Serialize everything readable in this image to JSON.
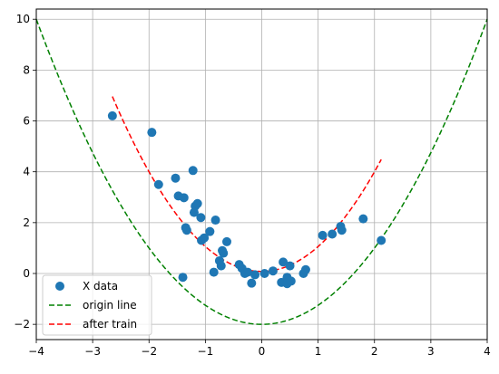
{
  "chart_data": {
    "type": "scatter",
    "xlim": [
      -4,
      4
    ],
    "ylim": [
      -2.6,
      10.4
    ],
    "xticks": [
      -4,
      -3,
      -2,
      -1,
      0,
      1,
      2,
      3,
      4
    ],
    "yticks": [
      -2,
      0,
      2,
      4,
      6,
      8,
      10
    ],
    "grid": true,
    "legend": {
      "placement": "lower-left",
      "entries": [
        "X data",
        "origin line",
        "after train"
      ]
    },
    "series": [
      {
        "name": "X data",
        "kind": "scatter",
        "color": "#1f77b4",
        "points": [
          [
            -2.65,
            6.2
          ],
          [
            -1.95,
            5.55
          ],
          [
            -1.83,
            3.5
          ],
          [
            -1.53,
            3.75
          ],
          [
            -1.48,
            3.05
          ],
          [
            -1.38,
            2.98
          ],
          [
            -1.22,
            4.05
          ],
          [
            -1.18,
            2.65
          ],
          [
            -1.14,
            2.75
          ],
          [
            -1.2,
            2.4
          ],
          [
            -1.08,
            2.2
          ],
          [
            -0.82,
            2.1
          ],
          [
            -1.35,
            1.8
          ],
          [
            -1.33,
            1.7
          ],
          [
            -0.92,
            1.65
          ],
          [
            -1.07,
            1.3
          ],
          [
            -1.02,
            1.4
          ],
          [
            -0.62,
            1.25
          ],
          [
            -0.7,
            0.9
          ],
          [
            -0.75,
            0.5
          ],
          [
            -0.72,
            0.3
          ],
          [
            -0.68,
            0.8
          ],
          [
            -0.85,
            0.05
          ],
          [
            -1.4,
            -0.15
          ],
          [
            -0.4,
            0.35
          ],
          [
            -0.35,
            0.2
          ],
          [
            -0.3,
            0.0
          ],
          [
            -0.25,
            0.05
          ],
          [
            -0.18,
            -0.38
          ],
          [
            -0.12,
            -0.05
          ],
          [
            0.05,
            0.0
          ],
          [
            0.2,
            0.1
          ],
          [
            0.35,
            -0.35
          ],
          [
            0.38,
            0.45
          ],
          [
            0.45,
            -0.4
          ],
          [
            0.45,
            -0.15
          ],
          [
            0.5,
            0.3
          ],
          [
            0.52,
            -0.3
          ],
          [
            0.74,
            0.0
          ],
          [
            0.78,
            0.15
          ],
          [
            1.08,
            1.5
          ],
          [
            1.25,
            1.55
          ],
          [
            1.4,
            1.85
          ],
          [
            1.42,
            1.7
          ],
          [
            1.8,
            2.15
          ],
          [
            2.12,
            1.3
          ]
        ]
      },
      {
        "name": "origin line",
        "kind": "line",
        "style": "dashed",
        "color": "#008000",
        "x_range": [
          -4,
          4
        ],
        "formula": "y = 0.75x^2 - 2"
      },
      {
        "name": "after train",
        "kind": "line",
        "style": "dashed",
        "color": "#ff0000",
        "x_range": [
          -2.65,
          2.12
        ],
        "formula": "y = 0.98x^2 + 0.08"
      }
    ]
  }
}
